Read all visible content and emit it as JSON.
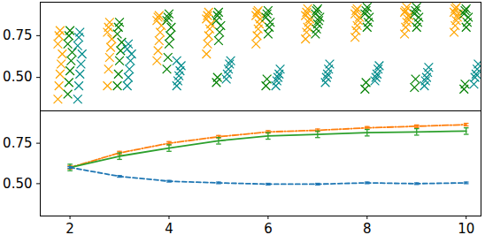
{
  "chart_data": [
    {
      "type": "scatter",
      "marker": "x",
      "tick_labels": "y",
      "x": [
        2,
        3,
        4,
        5,
        6,
        7,
        8,
        9,
        10
      ],
      "xlim": [
        1.4,
        10.3
      ],
      "ylim": [
        0.3,
        0.95
      ],
      "yticks": [
        {
          "value": 0.5,
          "label": "0.50"
        },
        {
          "value": 0.75,
          "label": "0.75"
        }
      ],
      "series": [
        {
          "color": "#ffa500",
          "values": [
            [
              0.37,
              0.45,
              0.52,
              0.58,
              0.64,
              0.7,
              0.75,
              0.78
            ],
            [
              0.45,
              0.55,
              0.62,
              0.68,
              0.73,
              0.77,
              0.8,
              0.83
            ],
            [
              0.6,
              0.66,
              0.72,
              0.77,
              0.81,
              0.84,
              0.86,
              0.87
            ],
            [
              0.64,
              0.7,
              0.75,
              0.79,
              0.82,
              0.85,
              0.87,
              0.89
            ],
            [
              0.7,
              0.75,
              0.79,
              0.82,
              0.85,
              0.87,
              0.89,
              0.9
            ],
            [
              0.73,
              0.77,
              0.8,
              0.83,
              0.85,
              0.87,
              0.89,
              0.91
            ],
            [
              0.74,
              0.78,
              0.81,
              0.84,
              0.86,
              0.88,
              0.9,
              0.91
            ],
            [
              0.76,
              0.8,
              0.83,
              0.85,
              0.87,
              0.89,
              0.9,
              0.92
            ],
            [
              0.77,
              0.81,
              0.84,
              0.86,
              0.88,
              0.89,
              0.91,
              0.92
            ]
          ]
        },
        {
          "color": "#008000",
          "values": [
            [
              0.4,
              0.47,
              0.54,
              0.6,
              0.65,
              0.7,
              0.75,
              0.78
            ],
            [
              0.45,
              0.52,
              0.6,
              0.66,
              0.71,
              0.76,
              0.8,
              0.83
            ],
            [
              0.55,
              0.62,
              0.7,
              0.75,
              0.8,
              0.84,
              0.86,
              0.88
            ],
            [
              0.47,
              0.5,
              0.72,
              0.77,
              0.81,
              0.84,
              0.87,
              0.89
            ],
            [
              0.45,
              0.49,
              0.76,
              0.8,
              0.83,
              0.86,
              0.88,
              0.9
            ],
            [
              0.76,
              0.79,
              0.82,
              0.84,
              0.86,
              0.88,
              0.9,
              0.91
            ],
            [
              0.43,
              0.47,
              0.8,
              0.83,
              0.86,
              0.88,
              0.9,
              0.92
            ],
            [
              0.44,
              0.49,
              0.8,
              0.83,
              0.86,
              0.88,
              0.9,
              0.92
            ],
            [
              0.43,
              0.46,
              0.8,
              0.83,
              0.86,
              0.88,
              0.9,
              0.91
            ]
          ]
        },
        {
          "color": "#008b8b",
          "values": [
            [
              0.37,
              0.45,
              0.52,
              0.58,
              0.64,
              0.69,
              0.74,
              0.77
            ],
            [
              0.45,
              0.5,
              0.55,
              0.6,
              0.64,
              0.67,
              0.7
            ],
            [
              0.45,
              0.48,
              0.51,
              0.54,
              0.57,
              0.6
            ],
            [
              0.49,
              0.52,
              0.55,
              0.58,
              0.6
            ],
            [
              0.45,
              0.48,
              0.5,
              0.52,
              0.55
            ],
            [
              0.47,
              0.5,
              0.52,
              0.55,
              0.58
            ],
            [
              0.48,
              0.5,
              0.52,
              0.55,
              0.57
            ],
            [
              0.45,
              0.48,
              0.5,
              0.53,
              0.56
            ],
            [
              0.46,
              0.5,
              0.52,
              0.55,
              0.58
            ]
          ]
        }
      ]
    },
    {
      "type": "line",
      "x": [
        2,
        3,
        4,
        5,
        6,
        7,
        8,
        9,
        10
      ],
      "xlim": [
        1.4,
        10.3
      ],
      "ylim": [
        0.3,
        0.95
      ],
      "xticks": [
        2,
        4,
        6,
        8,
        10
      ],
      "yticks": [
        {
          "value": 0.5,
          "label": "0.50"
        },
        {
          "value": 0.75,
          "label": "0.75"
        }
      ],
      "series": [
        {
          "color": "#ff7f0e",
          "line_style": "dashdot",
          "values": [
            0.6,
            0.69,
            0.75,
            0.79,
            0.82,
            0.83,
            0.845,
            0.855,
            0.865
          ],
          "errors": [
            0.01,
            0.01,
            0.01,
            0.008,
            0.008,
            0.008,
            0.008,
            0.008,
            0.008
          ]
        },
        {
          "color": "#2ca02c",
          "line_style": "solid",
          "values": [
            0.6,
            0.67,
            0.72,
            0.765,
            0.795,
            0.805,
            0.815,
            0.82,
            0.825
          ],
          "errors": [
            0.02,
            0.02,
            0.02,
            0.02,
            0.02,
            0.02,
            0.02,
            0.02,
            0.02
          ]
        },
        {
          "color": "#1f77b4",
          "line_style": "dashed",
          "values": [
            0.6,
            0.545,
            0.515,
            0.505,
            0.497,
            0.497,
            0.505,
            0.5,
            0.505
          ],
          "errors": [
            0.005,
            0.005,
            0.005,
            0.005,
            0.005,
            0.005,
            0.005,
            0.005,
            0.005
          ]
        }
      ]
    }
  ]
}
